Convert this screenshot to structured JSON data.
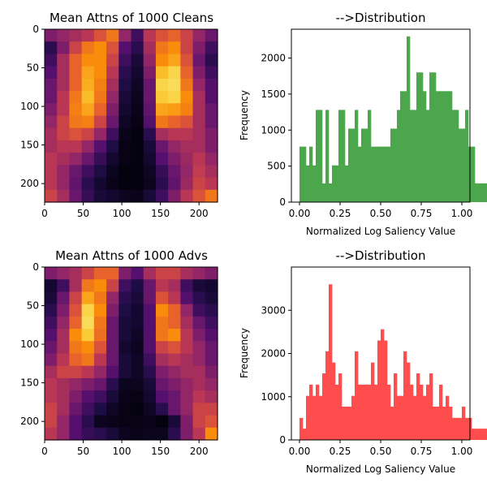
{
  "chart_data": [
    {
      "type": "heatmap",
      "title": "Mean Attns of 1000 Cleans",
      "colormap": "inferno",
      "x_ticks": [
        "0",
        "50",
        "100",
        "150",
        "200"
      ],
      "y_ticks": [
        "0",
        "50",
        "100",
        "150",
        "200"
      ],
      "xlim": [
        0,
        224
      ],
      "ylim": [
        224,
        0
      ],
      "grid": "14x14",
      "values": [
        [
          0.35,
          0.4,
          0.45,
          0.5,
          0.6,
          0.7,
          0.4,
          0.2,
          0.5,
          0.6,
          0.65,
          0.55,
          0.4,
          0.3
        ],
        [
          0.15,
          0.35,
          0.55,
          0.7,
          0.75,
          0.6,
          0.25,
          0.15,
          0.45,
          0.7,
          0.75,
          0.55,
          0.35,
          0.2
        ],
        [
          0.2,
          0.45,
          0.65,
          0.75,
          0.75,
          0.55,
          0.2,
          0.1,
          0.4,
          0.75,
          0.8,
          0.6,
          0.3,
          0.15
        ],
        [
          0.25,
          0.45,
          0.65,
          0.8,
          0.75,
          0.5,
          0.15,
          0.08,
          0.35,
          0.85,
          0.9,
          0.65,
          0.35,
          0.2
        ],
        [
          0.3,
          0.45,
          0.65,
          0.82,
          0.72,
          0.45,
          0.12,
          0.06,
          0.3,
          0.9,
          0.92,
          0.7,
          0.4,
          0.25
        ],
        [
          0.3,
          0.5,
          0.7,
          0.85,
          0.7,
          0.4,
          0.1,
          0.05,
          0.3,
          0.88,
          0.9,
          0.75,
          0.45,
          0.25
        ],
        [
          0.35,
          0.5,
          0.72,
          0.8,
          0.65,
          0.35,
          0.08,
          0.04,
          0.28,
          0.8,
          0.78,
          0.72,
          0.45,
          0.3
        ],
        [
          0.4,
          0.55,
          0.7,
          0.72,
          0.55,
          0.3,
          0.06,
          0.03,
          0.25,
          0.7,
          0.65,
          0.6,
          0.45,
          0.3
        ],
        [
          0.45,
          0.55,
          0.6,
          0.55,
          0.4,
          0.2,
          0.04,
          0.02,
          0.15,
          0.45,
          0.5,
          0.5,
          0.45,
          0.35
        ],
        [
          0.45,
          0.5,
          0.5,
          0.4,
          0.25,
          0.12,
          0.03,
          0.02,
          0.1,
          0.3,
          0.4,
          0.45,
          0.45,
          0.35
        ],
        [
          0.5,
          0.45,
          0.4,
          0.3,
          0.18,
          0.08,
          0.03,
          0.02,
          0.08,
          0.25,
          0.35,
          0.42,
          0.5,
          0.4
        ],
        [
          0.5,
          0.4,
          0.3,
          0.2,
          0.12,
          0.05,
          0.02,
          0.02,
          0.06,
          0.18,
          0.3,
          0.4,
          0.52,
          0.45
        ],
        [
          0.5,
          0.4,
          0.28,
          0.15,
          0.08,
          0.04,
          0.02,
          0.02,
          0.05,
          0.15,
          0.28,
          0.42,
          0.55,
          0.5
        ],
        [
          0.55,
          0.45,
          0.3,
          0.18,
          0.1,
          0.08,
          0.05,
          0.04,
          0.1,
          0.2,
          0.35,
          0.5,
          0.6,
          0.7
        ]
      ]
    },
    {
      "type": "bar",
      "title": "-->Distribution",
      "xlabel": "Normalized Log Saliency Value",
      "ylabel": "Frequency",
      "color": "#4ca64c",
      "xlim": [
        -0.05,
        1.05
      ],
      "ylim": [
        0,
        2400
      ],
      "x_ticks": [
        "0.00",
        "0.25",
        "0.50",
        "0.75",
        "1.00"
      ],
      "y_ticks": [
        "0",
        "500",
        "1000",
        "1500",
        "2000"
      ],
      "bin_start": 0.0,
      "bin_width": 0.02,
      "values": [
        770,
        770,
        510,
        770,
        510,
        1280,
        1280,
        260,
        1280,
        260,
        510,
        510,
        1280,
        1280,
        510,
        1020,
        1020,
        1280,
        770,
        1020,
        1020,
        1280,
        770,
        770,
        770,
        770,
        770,
        770,
        1020,
        1020,
        1280,
        1540,
        1540,
        2300,
        1280,
        1280,
        1800,
        1800,
        1540,
        1280,
        1800,
        1800,
        1540,
        1540,
        1540,
        1540,
        1540,
        1280,
        1280,
        1020,
        1020,
        1280,
        770,
        770,
        260,
        260,
        260,
        260,
        1020,
        510,
        510
      ]
    },
    {
      "type": "heatmap",
      "title": "Mean Attns of 1000 Advs",
      "colormap": "inferno",
      "x_ticks": [
        "0",
        "50",
        "100",
        "150",
        "200"
      ],
      "y_ticks": [
        "0",
        "50",
        "100",
        "150",
        "200"
      ],
      "xlim": [
        0,
        224
      ],
      "ylim": [
        224,
        0
      ],
      "grid": "14x14",
      "values": [
        [
          0.35,
          0.4,
          0.45,
          0.55,
          0.65,
          0.65,
          0.35,
          0.25,
          0.45,
          0.55,
          0.55,
          0.45,
          0.4,
          0.35
        ],
        [
          0.08,
          0.2,
          0.45,
          0.7,
          0.75,
          0.55,
          0.2,
          0.12,
          0.3,
          0.5,
          0.45,
          0.2,
          0.1,
          0.08
        ],
        [
          0.1,
          0.3,
          0.55,
          0.8,
          0.7,
          0.4,
          0.15,
          0.1,
          0.3,
          0.6,
          0.5,
          0.25,
          0.15,
          0.1
        ],
        [
          0.15,
          0.35,
          0.6,
          0.9,
          0.75,
          0.35,
          0.12,
          0.08,
          0.25,
          0.75,
          0.65,
          0.4,
          0.2,
          0.15
        ],
        [
          0.2,
          0.4,
          0.65,
          0.92,
          0.7,
          0.3,
          0.1,
          0.08,
          0.25,
          0.7,
          0.65,
          0.45,
          0.3,
          0.2
        ],
        [
          0.25,
          0.45,
          0.75,
          0.88,
          0.68,
          0.3,
          0.1,
          0.06,
          0.25,
          0.7,
          0.75,
          0.5,
          0.35,
          0.25
        ],
        [
          0.3,
          0.45,
          0.7,
          0.75,
          0.6,
          0.3,
          0.08,
          0.05,
          0.25,
          0.55,
          0.6,
          0.5,
          0.4,
          0.3
        ],
        [
          0.35,
          0.5,
          0.65,
          0.7,
          0.5,
          0.3,
          0.1,
          0.06,
          0.2,
          0.45,
          0.5,
          0.45,
          0.4,
          0.3
        ],
        [
          0.45,
          0.55,
          0.55,
          0.5,
          0.4,
          0.25,
          0.1,
          0.06,
          0.15,
          0.35,
          0.4,
          0.45,
          0.45,
          0.35
        ],
        [
          0.5,
          0.45,
          0.4,
          0.35,
          0.3,
          0.15,
          0.05,
          0.05,
          0.1,
          0.3,
          0.35,
          0.4,
          0.45,
          0.4
        ],
        [
          0.5,
          0.45,
          0.35,
          0.25,
          0.2,
          0.1,
          0.04,
          0.03,
          0.08,
          0.25,
          0.3,
          0.4,
          0.5,
          0.45
        ],
        [
          0.55,
          0.45,
          0.3,
          0.2,
          0.12,
          0.06,
          0.03,
          0.02,
          0.06,
          0.15,
          0.3,
          0.4,
          0.55,
          0.55
        ],
        [
          0.55,
          0.4,
          0.25,
          0.15,
          0.05,
          0.04,
          0.03,
          0.03,
          0.04,
          0.02,
          0.1,
          0.35,
          0.55,
          0.6
        ],
        [
          0.5,
          0.4,
          0.25,
          0.18,
          0.15,
          0.1,
          0.05,
          0.04,
          0.05,
          0.05,
          0.15,
          0.35,
          0.5,
          0.75
        ]
      ]
    },
    {
      "type": "bar",
      "title": "-->Distribution",
      "xlabel": "Normalized Log Saliency Value",
      "ylabel": "Frequency",
      "color": "#ff4c4c",
      "xlim": [
        -0.05,
        1.05
      ],
      "ylim": [
        0,
        4000
      ],
      "x_ticks": [
        "0.00",
        "0.25",
        "0.50",
        "0.75",
        "1.00"
      ],
      "y_ticks": [
        "0",
        "1000",
        "2000",
        "3000"
      ],
      "bin_start": 0.0,
      "bin_width": 0.02,
      "values": [
        510,
        260,
        1020,
        1280,
        1020,
        1280,
        1020,
        1540,
        2050,
        3600,
        1790,
        1280,
        1540,
        770,
        770,
        770,
        1020,
        2050,
        1280,
        1280,
        1280,
        1280,
        1790,
        1280,
        2300,
        2560,
        2300,
        1280,
        770,
        1540,
        1020,
        1020,
        2050,
        1790,
        1280,
        1020,
        1540,
        1280,
        1020,
        1280,
        1540,
        770,
        770,
        1280,
        770,
        1020,
        770,
        510,
        510,
        510,
        770,
        510,
        510,
        260,
        260,
        260,
        260,
        260,
        260,
        260
      ]
    }
  ]
}
